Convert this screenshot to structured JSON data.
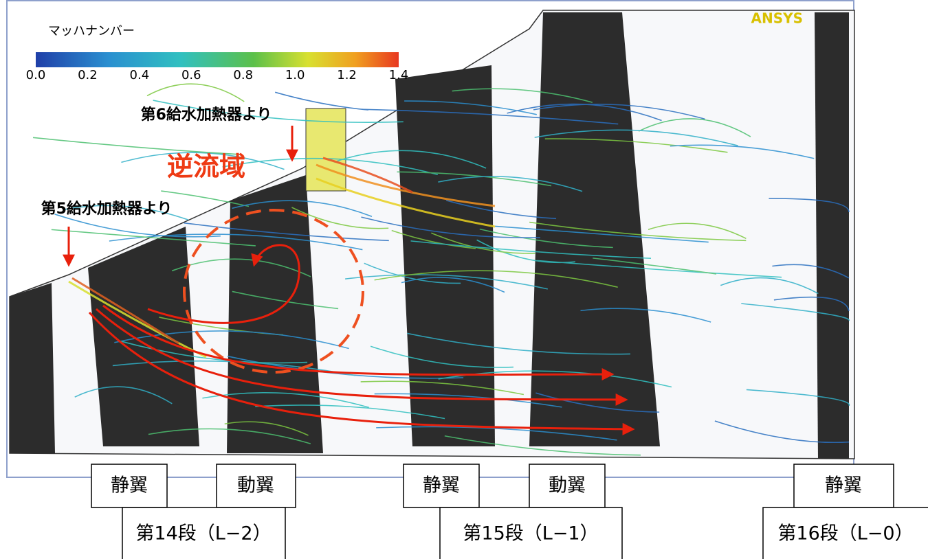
{
  "legend": {
    "title": "マッハナンバー",
    "ticks": [
      "0.0",
      "0.2",
      "0.4",
      "0.6",
      "0.8",
      "1.0",
      "1.2",
      "1.4"
    ]
  },
  "logo": "ANSYS",
  "annotations": {
    "heater6": "第6給水加熱器より",
    "heater5": "第5給水加熱器より",
    "reverse_flow": "逆流域"
  },
  "blades": [
    "静翼",
    "動翼",
    "静翼",
    "動翼",
    "静翼"
  ],
  "stages": [
    "第14段（L−2）",
    "第15段（L−1）",
    "第16段（L−0）"
  ]
}
